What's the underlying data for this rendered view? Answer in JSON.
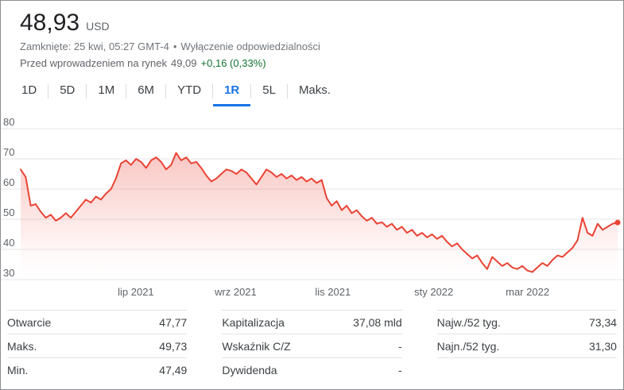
{
  "header": {
    "price": "48,93",
    "currency": "USD",
    "status_line": "Zamknięte: 25 kwi, 05:27 GMT-4",
    "status_separator": "•",
    "disclaimer_link": "Wyłączenie odpowiedzialności",
    "premarket_label": "Przed wprowadzeniem na rynek",
    "premarket_price": "49,09",
    "premarket_change": "+0,16 (0,33%)"
  },
  "tabs": [
    {
      "label": "1D",
      "selected": false
    },
    {
      "label": "5D",
      "selected": false
    },
    {
      "label": "1M",
      "selected": false
    },
    {
      "label": "6M",
      "selected": false
    },
    {
      "label": "YTD",
      "selected": false
    },
    {
      "label": "1R",
      "selected": true
    },
    {
      "label": "5L",
      "selected": false
    },
    {
      "label": "Maks.",
      "selected": false
    }
  ],
  "chart_data": {
    "type": "line",
    "title": "",
    "xlabel": "",
    "ylabel": "",
    "color": "#ea4335",
    "ylim": [
      30,
      80
    ],
    "yticks": [
      30,
      40,
      50,
      60,
      70,
      80
    ],
    "grid": true,
    "legend": false,
    "last_point_marker": true,
    "xtick_labels": [
      "lip 2021",
      "wrz 2021",
      "lis 2021",
      "sty 2022",
      "mar 2022"
    ],
    "xtick_positions": [
      0.193,
      0.36,
      0.523,
      0.692,
      0.849
    ],
    "values": [
      66.5,
      64,
      54.5,
      55,
      52.5,
      50.5,
      51.5,
      49.5,
      50.5,
      52,
      50.5,
      52.5,
      54.5,
      56.5,
      55.5,
      57.5,
      56.5,
      58.5,
      60,
      63.5,
      68.5,
      69.5,
      68,
      70,
      69,
      67,
      69.5,
      70.5,
      69,
      66.5,
      68,
      72,
      69.5,
      70.5,
      68.5,
      69,
      67,
      64.5,
      62.5,
      63.5,
      65,
      66.5,
      66,
      65,
      66.5,
      65.5,
      63.5,
      61.5,
      64,
      66.5,
      65.5,
      64,
      65,
      63.5,
      64.5,
      63,
      64,
      62.5,
      63.5,
      62,
      63,
      57,
      54.5,
      56,
      53,
      54.5,
      52,
      53,
      51,
      49.5,
      50.5,
      48.5,
      49,
      47.5,
      48.5,
      46.5,
      47.5,
      45.5,
      46.5,
      44.5,
      45.5,
      44,
      45,
      43.5,
      44.5,
      42.5,
      41,
      42,
      40,
      38.5,
      37,
      38,
      35.5,
      33.5,
      37.5,
      36,
      34.5,
      35.5,
      34,
      33.5,
      34.5,
      33,
      32.5,
      34,
      35.5,
      34.5,
      36.5,
      38,
      37.5,
      39,
      40.5,
      43,
      50.5,
      45.5,
      44.5,
      48.5,
      46.5,
      47.5,
      48.5,
      48.93
    ]
  },
  "stats": {
    "columns": [
      {
        "rows": [
          {
            "label": "Otwarcie",
            "value": "47,77"
          },
          {
            "label": "Maks.",
            "value": "49,73"
          },
          {
            "label": "Min.",
            "value": "47,49"
          }
        ]
      },
      {
        "rows": [
          {
            "label": "Kapitalizacja",
            "value": "37,08 mld"
          },
          {
            "label": "Wskaźnik C/Z",
            "value": "-"
          },
          {
            "label": "Dywidenda",
            "value": "-"
          }
        ]
      },
      {
        "rows": [
          {
            "label": "Najw./52 tyg.",
            "value": "73,34"
          },
          {
            "label": "Najn./52 tyg.",
            "value": "31,30"
          }
        ]
      }
    ]
  },
  "colors": {
    "accent_blue": "#1a73e8",
    "positive_green": "#137333",
    "series_red": "#ea4335",
    "text_primary": "#202124",
    "text_secondary": "#5f6368"
  }
}
